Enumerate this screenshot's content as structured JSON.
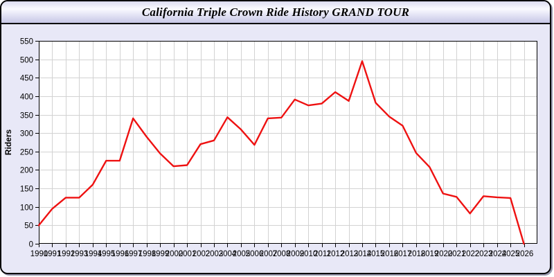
{
  "window": {
    "background_color": "#e8e8f7",
    "border_color": "#000000"
  },
  "titlebar": {
    "gradient_top": "#dcdcf0",
    "gradient_bottom": "#c7c7e6"
  },
  "chart_data": {
    "type": "line",
    "title": "California Triple Crown Ride History GRAND TOUR",
    "xlabel": "",
    "ylabel": "Riders",
    "series_name": "Riders",
    "x": [
      1990,
      1991,
      1992,
      1993,
      1994,
      1995,
      1996,
      1997,
      1998,
      1999,
      2000,
      2001,
      2002,
      2003,
      2004,
      2005,
      2006,
      2007,
      2008,
      2009,
      2010,
      2011,
      2012,
      2013,
      2014,
      2015,
      2016,
      2017,
      2018,
      2019,
      2020,
      2021,
      2022,
      2023,
      2024,
      2025,
      2026
    ],
    "values": [
      50,
      95,
      125,
      125,
      160,
      225,
      225,
      340,
      290,
      245,
      210,
      213,
      270,
      280,
      343,
      310,
      268,
      340,
      342,
      391,
      375,
      380,
      411,
      387,
      495,
      382,
      345,
      320,
      246,
      208,
      136,
      127,
      82,
      129,
      126,
      124,
      0
    ],
    "ylim": [
      0,
      550
    ],
    "ytick_step": 50,
    "xlim": [
      1990,
      2027
    ],
    "grid": true,
    "legend": "none",
    "line_color": "#ee1111",
    "grid_color": "#d2d2d2",
    "plot_bg": "#ffffff",
    "axis_text_color": "#000000"
  }
}
